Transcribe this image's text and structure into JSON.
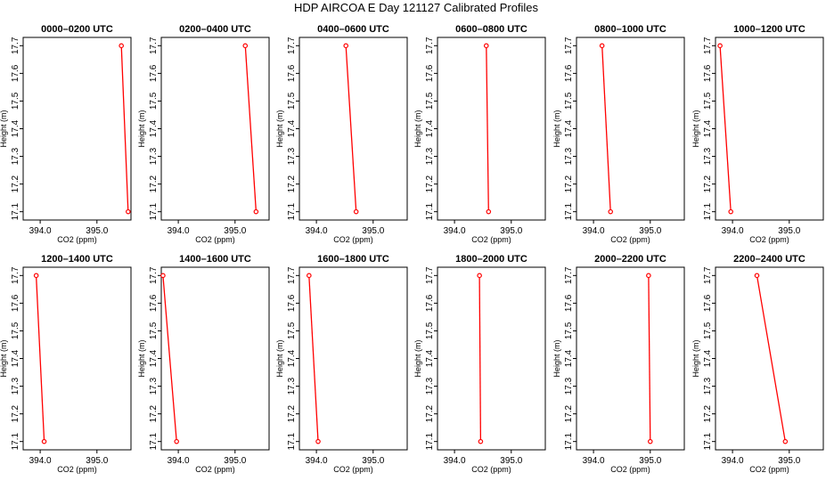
{
  "figure": {
    "title": "HDP AIRCOA E  Day 121127  Calibrated Profiles"
  },
  "colors": {
    "series": "#ff0000",
    "axes": "#000000",
    "background": "#ffffff"
  },
  "chart_data": [
    {
      "type": "line",
      "title": "0000–0200 UTC",
      "xlabel": "CO2 (ppm)",
      "ylabel": "Height (m)",
      "xlim": [
        393.7,
        395.6
      ],
      "ylim": [
        17.07,
        17.73
      ],
      "xticks": [
        "394.0",
        "395.0"
      ],
      "xtick_values": [
        394.0,
        395.0
      ],
      "yticks": [
        "17.1",
        "17.2",
        "17.3",
        "17.4",
        "17.5",
        "17.6",
        "17.7"
      ],
      "ytick_values": [
        17.1,
        17.2,
        17.3,
        17.4,
        17.5,
        17.6,
        17.7
      ],
      "series": [
        {
          "x": [
            395.43,
            395.55
          ],
          "y": [
            17.7,
            17.1
          ]
        }
      ]
    },
    {
      "type": "line",
      "title": "0200–0400 UTC",
      "xlabel": "CO2 (ppm)",
      "ylabel": "Height (m)",
      "xlim": [
        393.7,
        395.6
      ],
      "ylim": [
        17.07,
        17.73
      ],
      "xticks": [
        "394.0",
        "395.0"
      ],
      "xtick_values": [
        394.0,
        395.0
      ],
      "yticks": [
        "17.1",
        "17.2",
        "17.3",
        "17.4",
        "17.5",
        "17.6",
        "17.7"
      ],
      "ytick_values": [
        17.1,
        17.2,
        17.3,
        17.4,
        17.5,
        17.6,
        17.7
      ],
      "series": [
        {
          "x": [
            395.18,
            395.37
          ],
          "y": [
            17.7,
            17.1
          ]
        }
      ]
    },
    {
      "type": "line",
      "title": "0400–0600 UTC",
      "xlabel": "CO2 (ppm)",
      "ylabel": "Height (m)",
      "xlim": [
        393.7,
        395.6
      ],
      "ylim": [
        17.07,
        17.73
      ],
      "xticks": [
        "394.0",
        "395.0"
      ],
      "xtick_values": [
        394.0,
        395.0
      ],
      "yticks": [
        "17.1",
        "17.2",
        "17.3",
        "17.4",
        "17.5",
        "17.6",
        "17.7"
      ],
      "ytick_values": [
        17.1,
        17.2,
        17.3,
        17.4,
        17.5,
        17.6,
        17.7
      ],
      "series": [
        {
          "x": [
            394.52,
            394.7
          ],
          "y": [
            17.7,
            17.1
          ]
        }
      ]
    },
    {
      "type": "line",
      "title": "0600–0800 UTC",
      "xlabel": "CO2 (ppm)",
      "ylabel": "Height (m)",
      "xlim": [
        393.7,
        395.6
      ],
      "ylim": [
        17.07,
        17.73
      ],
      "xticks": [
        "394.0",
        "395.0"
      ],
      "xtick_values": [
        394.0,
        395.0
      ],
      "yticks": [
        "17.1",
        "17.2",
        "17.3",
        "17.4",
        "17.5",
        "17.6",
        "17.7"
      ],
      "ytick_values": [
        17.1,
        17.2,
        17.3,
        17.4,
        17.5,
        17.6,
        17.7
      ],
      "series": [
        {
          "x": [
            394.56,
            394.6
          ],
          "y": [
            17.7,
            17.1
          ]
        }
      ]
    },
    {
      "type": "line",
      "title": "0800–1000 UTC",
      "xlabel": "CO2 (ppm)",
      "ylabel": "Height (m)",
      "xlim": [
        393.7,
        395.6
      ],
      "ylim": [
        17.07,
        17.73
      ],
      "xticks": [
        "394.0",
        "395.0"
      ],
      "xtick_values": [
        394.0,
        395.0
      ],
      "yticks": [
        "17.1",
        "17.2",
        "17.3",
        "17.4",
        "17.5",
        "17.6",
        "17.7"
      ],
      "ytick_values": [
        17.1,
        17.2,
        17.3,
        17.4,
        17.5,
        17.6,
        17.7
      ],
      "series": [
        {
          "x": [
            394.15,
            394.3
          ],
          "y": [
            17.7,
            17.1
          ]
        }
      ]
    },
    {
      "type": "line",
      "title": "1000–1200 UTC",
      "xlabel": "CO2 (ppm)",
      "ylabel": "Height (m)",
      "xlim": [
        393.7,
        395.6
      ],
      "ylim": [
        17.07,
        17.73
      ],
      "xticks": [
        "394.0",
        "395.0"
      ],
      "xtick_values": [
        394.0,
        395.0
      ],
      "yticks": [
        "17.1",
        "17.2",
        "17.3",
        "17.4",
        "17.5",
        "17.6",
        "17.7"
      ],
      "ytick_values": [
        17.1,
        17.2,
        17.3,
        17.4,
        17.5,
        17.6,
        17.7
      ],
      "series": [
        {
          "x": [
            393.78,
            393.97
          ],
          "y": [
            17.7,
            17.1
          ]
        }
      ]
    },
    {
      "type": "line",
      "title": "1200–1400 UTC",
      "xlabel": "CO2 (ppm)",
      "ylabel": "Height (m)",
      "xlim": [
        393.7,
        395.6
      ],
      "ylim": [
        17.07,
        17.73
      ],
      "xticks": [
        "394.0",
        "395.0"
      ],
      "xtick_values": [
        394.0,
        395.0
      ],
      "yticks": [
        "17.1",
        "17.2",
        "17.3",
        "17.4",
        "17.5",
        "17.6",
        "17.7"
      ],
      "ytick_values": [
        17.1,
        17.2,
        17.3,
        17.4,
        17.5,
        17.6,
        17.7
      ],
      "series": [
        {
          "x": [
            393.93,
            394.07
          ],
          "y": [
            17.7,
            17.1
          ]
        }
      ]
    },
    {
      "type": "line",
      "title": "1400–1600 UTC",
      "xlabel": "CO2 (ppm)",
      "ylabel": "Height (m)",
      "xlim": [
        393.7,
        395.6
      ],
      "ylim": [
        17.07,
        17.73
      ],
      "xticks": [
        "394.0",
        "395.0"
      ],
      "xtick_values": [
        394.0,
        395.0
      ],
      "yticks": [
        "17.1",
        "17.2",
        "17.3",
        "17.4",
        "17.5",
        "17.6",
        "17.7"
      ],
      "ytick_values": [
        17.1,
        17.2,
        17.3,
        17.4,
        17.5,
        17.6,
        17.7
      ],
      "series": [
        {
          "x": [
            393.73,
            393.97
          ],
          "y": [
            17.7,
            17.1
          ]
        }
      ]
    },
    {
      "type": "line",
      "title": "1600–1800 UTC",
      "xlabel": "CO2 (ppm)",
      "ylabel": "Height (m)",
      "xlim": [
        393.7,
        395.6
      ],
      "ylim": [
        17.07,
        17.73
      ],
      "xticks": [
        "394.0",
        "395.0"
      ],
      "xtick_values": [
        394.0,
        395.0
      ],
      "yticks": [
        "17.1",
        "17.2",
        "17.3",
        "17.4",
        "17.5",
        "17.6",
        "17.7"
      ],
      "ytick_values": [
        17.1,
        17.2,
        17.3,
        17.4,
        17.5,
        17.6,
        17.7
      ],
      "series": [
        {
          "x": [
            393.87,
            394.03
          ],
          "y": [
            17.7,
            17.1
          ]
        }
      ]
    },
    {
      "type": "line",
      "title": "1800–2000 UTC",
      "xlabel": "CO2 (ppm)",
      "ylabel": "Height (m)",
      "xlim": [
        393.7,
        395.6
      ],
      "ylim": [
        17.07,
        17.73
      ],
      "xticks": [
        "394.0",
        "395.0"
      ],
      "xtick_values": [
        394.0,
        395.0
      ],
      "yticks": [
        "17.1",
        "17.2",
        "17.3",
        "17.4",
        "17.5",
        "17.6",
        "17.7"
      ],
      "ytick_values": [
        17.1,
        17.2,
        17.3,
        17.4,
        17.5,
        17.6,
        17.7
      ],
      "series": [
        {
          "x": [
            394.44,
            394.46
          ],
          "y": [
            17.7,
            17.1
          ]
        }
      ]
    },
    {
      "type": "line",
      "title": "2000–2200 UTC",
      "xlabel": "CO2 (ppm)",
      "ylabel": "Height (m)",
      "xlim": [
        393.7,
        395.6
      ],
      "ylim": [
        17.07,
        17.73
      ],
      "xticks": [
        "394.0",
        "395.0"
      ],
      "xtick_values": [
        394.0,
        395.0
      ],
      "yticks": [
        "17.1",
        "17.2",
        "17.3",
        "17.4",
        "17.5",
        "17.6",
        "17.7"
      ],
      "ytick_values": [
        17.1,
        17.2,
        17.3,
        17.4,
        17.5,
        17.6,
        17.7
      ],
      "series": [
        {
          "x": [
            394.97,
            395.0
          ],
          "y": [
            17.7,
            17.1
          ]
        }
      ]
    },
    {
      "type": "line",
      "title": "2200–2400 UTC",
      "xlabel": "CO2 (ppm)",
      "ylabel": "Height (m)",
      "xlim": [
        393.7,
        395.6
      ],
      "ylim": [
        17.07,
        17.73
      ],
      "xticks": [
        "394.0",
        "395.0"
      ],
      "xtick_values": [
        394.0,
        395.0
      ],
      "yticks": [
        "17.1",
        "17.2",
        "17.3",
        "17.4",
        "17.5",
        "17.6",
        "17.7"
      ],
      "ytick_values": [
        17.1,
        17.2,
        17.3,
        17.4,
        17.5,
        17.6,
        17.7
      ],
      "series": [
        {
          "x": [
            394.43,
            394.93
          ],
          "y": [
            17.7,
            17.1
          ]
        }
      ]
    }
  ]
}
